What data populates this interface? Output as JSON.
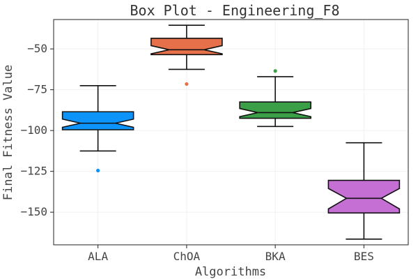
{
  "chart_data": {
    "type": "box",
    "title": "Box Plot - Engineering_F8",
    "xlabel": "Algorithms",
    "ylabel": "Final Fitness Value",
    "ylim": [
      -170,
      -32
    ],
    "yticks": [
      -50,
      -75,
      -100,
      -125,
      -150
    ],
    "grid": true,
    "notched": true,
    "categories": [
      "ALA",
      "ChOA",
      "BKA",
      "BES"
    ],
    "series": [
      {
        "category": "ALA",
        "color": "#0d94fb",
        "whisker_low": -112.5,
        "q1": -99.5,
        "median": -95.5,
        "q3": -88.5,
        "whisker_high": -72.5,
        "notch_low": -98.0,
        "notch_high": -93.0,
        "outliers": [
          -124.5
        ]
      },
      {
        "category": "ChOA",
        "color": "#e5704a",
        "whisker_low": -62.5,
        "q1": -53.5,
        "median": -50.5,
        "q3": -43.5,
        "whisker_high": -35.5,
        "notch_low": -53.0,
        "notch_high": -48.0,
        "outliers": [
          -71.5
        ]
      },
      {
        "category": "BKA",
        "color": "#3b9f47",
        "whisker_low": -97.5,
        "q1": -92.5,
        "median": -89.0,
        "q3": -82.5,
        "whisker_high": -67.0,
        "notch_low": -91.5,
        "notch_high": -86.5,
        "outliers": [
          -63.5
        ]
      },
      {
        "category": "BES",
        "color": "#c56ed4",
        "whisker_low": -166.5,
        "q1": -150.5,
        "median": -141.5,
        "q3": -130.5,
        "whisker_high": -107.5,
        "notch_low": -148.0,
        "notch_high": -135.5,
        "outliers": []
      }
    ]
  }
}
